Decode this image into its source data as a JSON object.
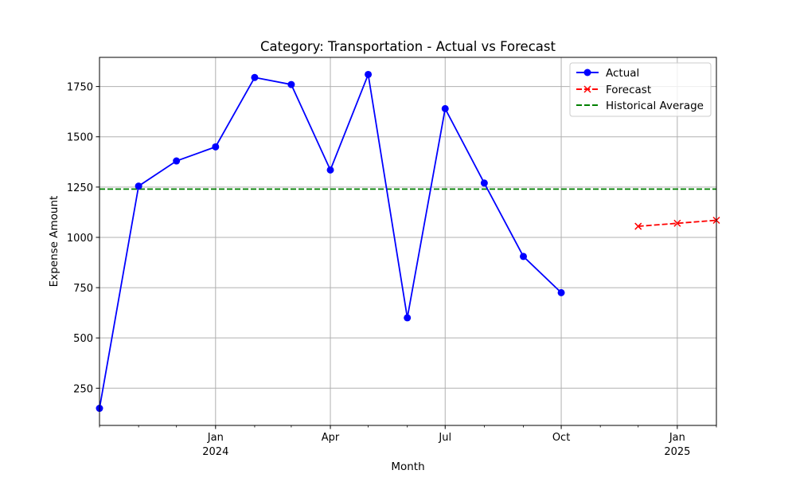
{
  "chart_data": {
    "type": "line",
    "title": "Category: Transportation - Actual vs Forecast",
    "xlabel": "Month",
    "ylabel": "Expense Amount",
    "xlim": [
      "2023-10-01",
      "2025-02-01"
    ],
    "ylim": [
      65,
      1895
    ],
    "x_ticks": [
      {
        "date": "2024-01-01",
        "label": "Jan",
        "sublabel": "2024"
      },
      {
        "date": "2024-04-01",
        "label": "Apr",
        "sublabel": ""
      },
      {
        "date": "2024-07-01",
        "label": "Jul",
        "sublabel": ""
      },
      {
        "date": "2024-10-01",
        "label": "Oct",
        "sublabel": ""
      },
      {
        "date": "2025-01-01",
        "label": "Jan",
        "sublabel": "2025"
      }
    ],
    "x_minor_ticks": [
      "2023-10-01",
      "2023-11-01",
      "2023-12-01",
      "2024-02-01",
      "2024-03-01",
      "2024-05-01",
      "2024-06-01",
      "2024-08-01",
      "2024-09-01",
      "2024-11-01",
      "2024-12-01",
      "2025-02-01"
    ],
    "y_ticks": [
      250,
      500,
      750,
      1000,
      1250,
      1500,
      1750
    ],
    "y_tick_labels": [
      "250",
      "500",
      "750",
      "1000",
      "1250",
      "1500",
      "1750"
    ],
    "grid": true,
    "legend_position": "top-right",
    "series": [
      {
        "name": "Actual",
        "color": "#0000ff",
        "style": "solid",
        "marker": "circle",
        "points": [
          {
            "x": "2023-10-01",
            "y": 150
          },
          {
            "x": "2023-11-01",
            "y": 1255
          },
          {
            "x": "2023-12-01",
            "y": 1380
          },
          {
            "x": "2024-01-01",
            "y": 1450
          },
          {
            "x": "2024-02-01",
            "y": 1795
          },
          {
            "x": "2024-03-01",
            "y": 1760
          },
          {
            "x": "2024-04-01",
            "y": 1335
          },
          {
            "x": "2024-05-01",
            "y": 1810
          },
          {
            "x": "2024-06-01",
            "y": 600
          },
          {
            "x": "2024-07-01",
            "y": 1640
          },
          {
            "x": "2024-08-01",
            "y": 1270
          },
          {
            "x": "2024-09-01",
            "y": 905
          },
          {
            "x": "2024-10-01",
            "y": 725
          }
        ]
      },
      {
        "name": "Forecast",
        "color": "#ff0000",
        "style": "dashed",
        "marker": "x",
        "points": [
          {
            "x": "2024-12-01",
            "y": 1055
          },
          {
            "x": "2025-01-01",
            "y": 1070
          },
          {
            "x": "2025-02-01",
            "y": 1085
          }
        ]
      }
    ],
    "reference_lines": [
      {
        "name": "Historical Average",
        "color": "#008000",
        "style": "dashed",
        "y": 1240
      }
    ]
  }
}
